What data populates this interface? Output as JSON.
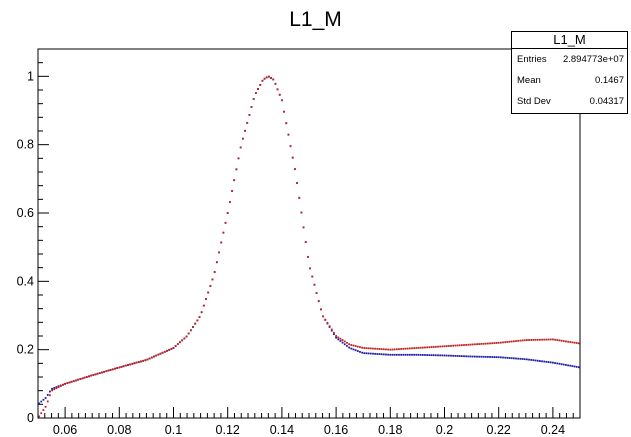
{
  "title": "L1_M",
  "stats": {
    "title": "L1_M",
    "rows": [
      {
        "label": "Entries",
        "value": "2.894773e+07"
      },
      {
        "label": "Mean",
        "value": "0.1467"
      },
      {
        "label": "Std Dev",
        "value": "0.04317"
      }
    ]
  },
  "colors": {
    "series_blue": "#1f1fa8",
    "series_red": "#c0221e",
    "axis": "#000000"
  },
  "chart_data": {
    "type": "scatter",
    "title": "L1_M",
    "xlabel": "",
    "ylabel": "",
    "xlim": [
      0.05,
      0.25
    ],
    "ylim": [
      0,
      1.08
    ],
    "xticks": [
      0.06,
      0.08,
      0.1,
      0.12,
      0.14,
      0.16,
      0.18,
      0.2,
      0.22,
      0.24
    ],
    "xtick_labels": [
      "0.06",
      "0.08",
      "0.1",
      "0.12",
      "0.14",
      "0.16",
      "0.18",
      "0.2",
      "0.22",
      "0.24"
    ],
    "yticks": [
      0,
      0.2,
      0.4,
      0.6,
      0.8,
      1
    ],
    "ytick_labels": [
      "0",
      "0.2",
      "0.4",
      "0.6",
      "0.8",
      "1"
    ],
    "grid": false,
    "series": [
      {
        "color": "#1f1fa8",
        "x": [
          0.05,
          0.053,
          0.055,
          0.06,
          0.07,
          0.08,
          0.09,
          0.1,
          0.105,
          0.11,
          0.115,
          0.12,
          0.125,
          0.13,
          0.133,
          0.135,
          0.137,
          0.14,
          0.145,
          0.15,
          0.155,
          0.16,
          0.165,
          0.17,
          0.18,
          0.19,
          0.2,
          0.21,
          0.22,
          0.23,
          0.24,
          0.25
        ],
        "y": [
          0.04,
          0.06,
          0.085,
          0.1,
          0.125,
          0.148,
          0.17,
          0.205,
          0.24,
          0.3,
          0.42,
          0.6,
          0.8,
          0.945,
          0.99,
          1.0,
          0.99,
          0.93,
          0.72,
          0.45,
          0.3,
          0.235,
          0.205,
          0.19,
          0.185,
          0.185,
          0.183,
          0.18,
          0.178,
          0.172,
          0.162,
          0.148
        ]
      },
      {
        "color": "#c0221e",
        "x": [
          0.05,
          0.053,
          0.055,
          0.06,
          0.07,
          0.08,
          0.09,
          0.1,
          0.105,
          0.11,
          0.115,
          0.12,
          0.125,
          0.13,
          0.133,
          0.135,
          0.137,
          0.14,
          0.145,
          0.15,
          0.155,
          0.16,
          0.165,
          0.17,
          0.18,
          0.19,
          0.2,
          0.21,
          0.22,
          0.23,
          0.24,
          0.25
        ],
        "y": [
          0.0,
          0.035,
          0.08,
          0.1,
          0.125,
          0.148,
          0.17,
          0.205,
          0.24,
          0.3,
          0.42,
          0.6,
          0.8,
          0.945,
          0.99,
          1.0,
          0.99,
          0.93,
          0.72,
          0.45,
          0.3,
          0.24,
          0.215,
          0.205,
          0.2,
          0.205,
          0.21,
          0.215,
          0.22,
          0.228,
          0.23,
          0.218
        ]
      }
    ]
  }
}
